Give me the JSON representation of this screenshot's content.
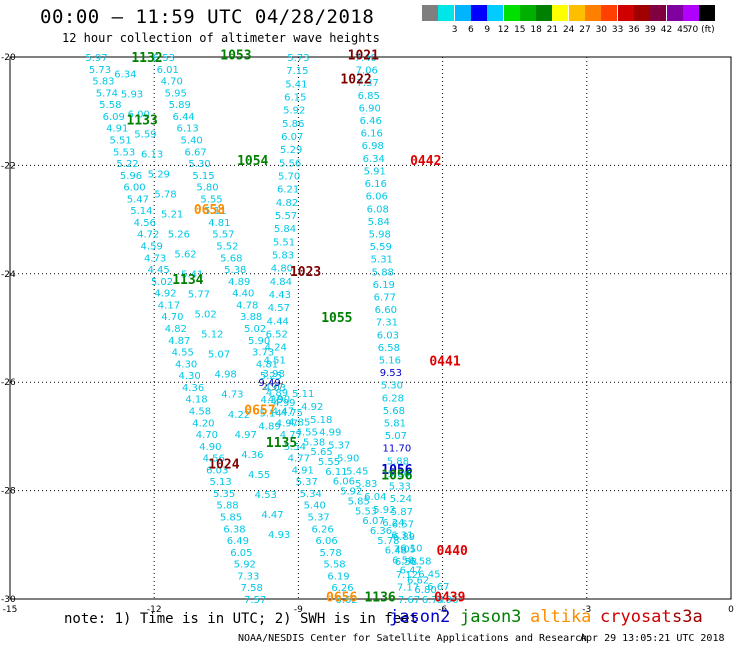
{
  "title": "00:00 – 11:59 UTC 04/28/2018",
  "subtitle": "12 hour collection of altimeter wave heights",
  "legend": {
    "colors": [
      "#7f7f7f",
      "#00e5e5",
      "#00b4ff",
      "#0000ff",
      "#00ccff",
      "#00e000",
      "#00b000",
      "#008000",
      "#ffff00",
      "#ffbf00",
      "#ff8000",
      "#ff4000",
      "#d00000",
      "#a00000",
      "#800040",
      "#8000a0",
      "#b000ff",
      "#000000"
    ],
    "labels": [
      "3",
      "6",
      "9",
      "12",
      "15",
      "18",
      "21",
      "24",
      "27",
      "30",
      "33",
      "36",
      "39",
      "42",
      "45",
      "70 (ft)"
    ],
    "unit": "(ft)"
  },
  "map": {
    "lon_range": [
      -15,
      0
    ],
    "lat_range": [
      -30,
      -20
    ],
    "x_ticks": [
      "-15",
      "-12",
      "-9",
      "-6",
      "-3",
      "0"
    ],
    "y_ticks": [
      "-20",
      "-22",
      "-24",
      "-26",
      "-28",
      "-30"
    ]
  },
  "tracks": [
    {
      "lon0": -13.2,
      "lat0": -20,
      "lon1": -9.9,
      "lat1": -30,
      "color": "#00c8e6",
      "values": [
        "5.97",
        "5.73",
        "5.83",
        "5.74",
        "5.58",
        "6.09",
        "4.91",
        "5.51",
        "5.53",
        "5.22",
        "5.96",
        "6.00",
        "5.47",
        "5.14",
        "4.56",
        "4.72",
        "4.59",
        "4.73",
        "4.45",
        "5.02",
        "4.92",
        "4.17",
        "4.70",
        "4.82",
        "4.87",
        "4.55",
        "4.30",
        "4.30",
        "4.36",
        "4.18",
        "4.58",
        "4.20",
        "4.70",
        "4.90",
        "4.56",
        "6.03",
        "5.13",
        "5.35",
        "5.88",
        "5.85",
        "6.38",
        "6.49",
        "6.05",
        "5.92",
        "7.33",
        "7.58",
        "7.57"
      ]
    },
    {
      "lon0": -11.8,
      "lat0": -20,
      "lon1": -8.0,
      "lat1": -30,
      "color": "#00c8e6",
      "values": [
        "6.53",
        "6.01",
        "4.70",
        "5.95",
        "5.89",
        "6.44",
        "6.13",
        "5.40",
        "6.67",
        "5.30",
        "5.15",
        "5.80",
        "5.55",
        "5.11",
        "4.81",
        "5.57",
        "5.52",
        "5.68",
        "5.38",
        "4.89",
        "4.40",
        "4.78",
        "3.88",
        "5.02",
        "5.90",
        "3.73",
        "4.81",
        "5.25",
        "4.03",
        "4.90",
        "4.47",
        "4.97",
        "4.77",
        "5.54",
        "4.77",
        "4.91",
        "5.37",
        "5.34",
        "5.40",
        "5.37",
        "6.26",
        "6.06",
        "5.78",
        "5.58",
        "6.19",
        "6.26",
        "6.62"
      ]
    },
    {
      "lon0": -12.6,
      "lat0": -20.3,
      "lon1": -9.4,
      "lat1": -28.8,
      "color": "#00c8e6",
      "values": [
        "6.34",
        "5.93",
        "6.00",
        "5.59",
        "6.13",
        "5.29",
        "5.78",
        "5.21",
        "5.26",
        "5.62",
        "5.41",
        "5.77",
        "5.02",
        "5.12",
        "5.07",
        "4.98",
        "4.73",
        "4.22",
        "4.97",
        "4.36",
        "4.55",
        "4.53",
        "4.47",
        "4.93"
      ]
    },
    {
      "lon0": -9.0,
      "lat0": -20,
      "lon1": -9.6,
      "lat1": -26.8,
      "color": "#00c8e6",
      "values": [
        "5.73",
        "7.15",
        "5.41",
        "6.15",
        "5.92",
        "5.86",
        "6.07",
        "5.29",
        "5.56",
        "5.70",
        "6.21",
        "4.82",
        "5.57",
        "5.84",
        "5.51",
        "5.83",
        "4.80",
        "4.84",
        "4.43",
        "4.57",
        "4.44",
        "6.52",
        "4.24",
        "4.51",
        "3.98",
        "2.97",
        "4.38",
        "5.14",
        "4.89"
      ]
    },
    {
      "lon0": -9.6,
      "lat0": -26.0,
      "lon1": -6.2,
      "lat1": -30,
      "color": "#00c8e6",
      "values": [
        "9.49",
        "4.89",
        "4.99",
        "4.75",
        "4.85",
        "4.55",
        "5.38",
        "5.65",
        "5.55",
        "6.11",
        "6.06",
        "5.92",
        "5.85",
        "5.53",
        "6.07",
        "6.36",
        "5.78",
        "6.48",
        "6.50",
        "6.47",
        "6.62",
        "6.80",
        "6.74"
      ]
    },
    {
      "lon0": -8.9,
      "lat0": -26.2,
      "lon1": -5.9,
      "lat1": -30,
      "color": "#00c8e6",
      "values": [
        "5.11",
        "4.92",
        "5.18",
        "4.99",
        "5.37",
        "5.90",
        "5.45",
        "5.83",
        "6.04",
        "5.92",
        "6.24",
        "6.31",
        "6.10",
        "6.58",
        "6.45",
        "6.67",
        "6.96"
      ]
    },
    {
      "lon0": -7.6,
      "lat0": -20,
      "lon1": -6.7,
      "lat1": -30,
      "color": "#00c8e6",
      "values": [
        "7.40",
        "7.06",
        "7.37",
        "6.85",
        "6.90",
        "6.46",
        "6.16",
        "6.98",
        "6.34",
        "5.91",
        "6.16",
        "6.06",
        "6.08",
        "5.84",
        "5.98",
        "5.59",
        "5.31",
        "5.88",
        "6.19",
        "6.77",
        "6.60",
        "7.31",
        "6.03",
        "6.58",
        "5.16",
        "9.53",
        "5.30",
        "6.28",
        "5.68",
        "5.81",
        "5.07",
        "11.70",
        "5.88",
        "5.80",
        "5.33",
        "5.24",
        "5.87",
        "6.57",
        "6.89",
        "7.05",
        "6.58",
        "7.12",
        "7.17",
        "7.67"
      ]
    }
  ],
  "labels": [
    {
      "text": "1132",
      "lon": -12.15,
      "lat": -20.0,
      "color": "#008000"
    },
    {
      "text": "1053",
      "lon": -10.3,
      "lat": -19.95,
      "color": "#008000"
    },
    {
      "text": "1021",
      "lon": -7.65,
      "lat": -19.95,
      "color": "#800000"
    },
    {
      "text": "1022",
      "lon": -7.8,
      "lat": -20.4,
      "color": "#800000"
    },
    {
      "text": "1133",
      "lon": -12.25,
      "lat": -21.15,
      "color": "#008000"
    },
    {
      "text": "1054",
      "lon": -9.95,
      "lat": -21.9,
      "color": "#008000"
    },
    {
      "text": "0442",
      "lon": -6.35,
      "lat": -21.9,
      "color": "#e00000"
    },
    {
      "text": "0658",
      "lon": -10.85,
      "lat": -22.8,
      "color": "#ff8c00"
    },
    {
      "text": "1023",
      "lon": -8.85,
      "lat": -23.95,
      "color": "#800000"
    },
    {
      "text": "1134",
      "lon": -11.3,
      "lat": -24.1,
      "color": "#008000"
    },
    {
      "text": "1055",
      "lon": -8.2,
      "lat": -24.8,
      "color": "#008000"
    },
    {
      "text": "0441",
      "lon": -5.95,
      "lat": -25.6,
      "color": "#e00000"
    },
    {
      "text": "0657",
      "lon": -9.8,
      "lat": -26.5,
      "color": "#ff8c00"
    },
    {
      "text": "1135",
      "lon": -9.35,
      "lat": -27.1,
      "color": "#008000"
    },
    {
      "text": "1024",
      "lon": -10.55,
      "lat": -27.5,
      "color": "#800000"
    },
    {
      "text": "1056",
      "lon": -6.95,
      "lat": -27.6,
      "color": "#0000cc"
    },
    {
      "text": "1056",
      "lon": -6.95,
      "lat": -27.7,
      "color": "#008000"
    },
    {
      "text": "0440",
      "lon": -5.8,
      "lat": -29.1,
      "color": "#e00000"
    },
    {
      "text": "0656",
      "lon": -8.1,
      "lat": -29.95,
      "color": "#ff8c00"
    },
    {
      "text": "1136",
      "lon": -7.3,
      "lat": -29.95,
      "color": "#008000"
    },
    {
      "text": "0439",
      "lon": -5.85,
      "lat": -29.95,
      "color": "#e00000"
    }
  ],
  "note": "note: 1) Time is in UTC; 2) SWH is in feet",
  "satellites": [
    {
      "name": "jason2",
      "color": "#0000cc"
    },
    {
      "name": "jason3",
      "color": "#008000"
    },
    {
      "name": "altika",
      "color": "#ff8c00"
    },
    {
      "name": "cryosat",
      "color": "#d00000"
    },
    {
      "name": "s3a",
      "color": "#a00000"
    }
  ],
  "credit": "NOAA/NESDIS Center for Satellite Applications and Research",
  "stamp": "Apr 29 13:05:21 UTC 2018"
}
